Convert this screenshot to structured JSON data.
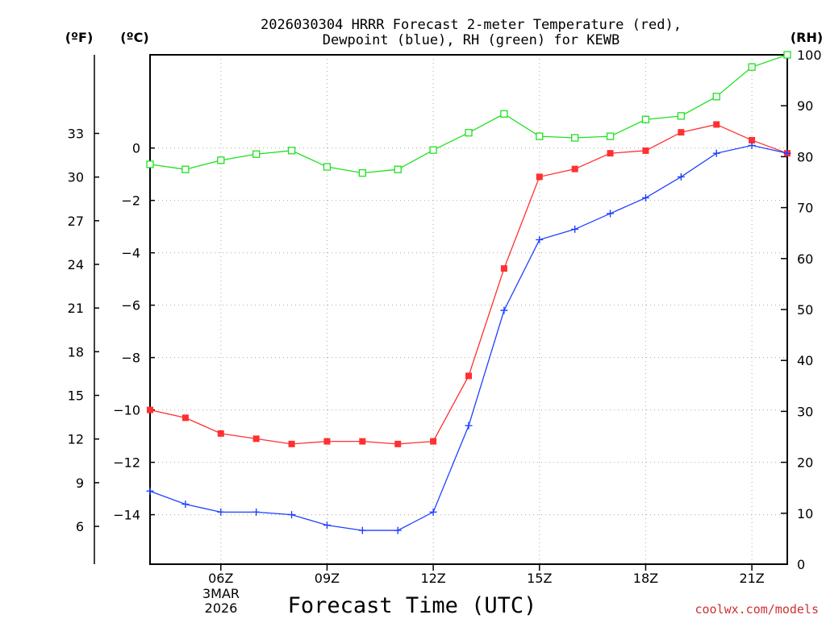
{
  "chart_data": {
    "type": "line",
    "title_line1": "2026030304 HRRR Forecast 2-meter Temperature (red),",
    "title_line2": "Dewpoint (blue), RH (green) for KEWB",
    "xlabel": "Forecast Time (UTC)",
    "credit": "coolwx.com/models",
    "date_label": [
      "3MAR",
      "2026"
    ],
    "x_hours": [
      4,
      5,
      6,
      7,
      8,
      9,
      10,
      11,
      12,
      13,
      14,
      15,
      16,
      17,
      18,
      19,
      20,
      21,
      22
    ],
    "x_range": [
      4,
      22
    ],
    "x_ticks": [
      {
        "hour": 6,
        "label": "06Z"
      },
      {
        "hour": 9,
        "label": "09Z"
      },
      {
        "hour": 12,
        "label": "12Z"
      },
      {
        "hour": 15,
        "label": "15Z"
      },
      {
        "hour": 18,
        "label": "18Z"
      },
      {
        "hour": 21,
        "label": "21Z"
      }
    ],
    "axes": {
      "fahrenheit": {
        "unit_label": "(ºF)",
        "range": [
          3.4,
          38.4
        ],
        "ticks": [
          "6",
          "9",
          "12",
          "15",
          "18",
          "21",
          "24",
          "27",
          "30",
          "33"
        ]
      },
      "celsius": {
        "unit_label": "(ºC)",
        "range": [
          -15.89,
          3.56
        ],
        "ticks": [
          "−14",
          "−12",
          "−10",
          "−8",
          "−6",
          "−4",
          "−2",
          "0"
        ]
      },
      "rh": {
        "unit_label": "(RH)",
        "range": [
          0,
          100
        ],
        "ticks": [
          "0",
          "10",
          "20",
          "30",
          "40",
          "50",
          "60",
          "70",
          "80",
          "90",
          "100"
        ]
      }
    },
    "series": [
      {
        "name": "Temperature",
        "color": "#ff3030",
        "axis": "celsius",
        "marker": "filled-square",
        "values": [
          -10.0,
          -10.3,
          -10.9,
          -11.1,
          -11.3,
          -11.2,
          -11.2,
          -11.3,
          -11.2,
          -8.7,
          -4.6,
          -1.1,
          -0.8,
          -0.2,
          -0.1,
          0.6,
          0.9,
          0.3,
          -0.2
        ]
      },
      {
        "name": "Dewpoint",
        "color": "#2040ff",
        "axis": "celsius",
        "marker": "plus",
        "values": [
          -13.1,
          -13.6,
          -13.9,
          -13.9,
          -14.0,
          -14.4,
          -14.6,
          -14.6,
          -13.9,
          -10.6,
          -6.2,
          -3.5,
          -3.1,
          -2.5,
          -1.9,
          -1.1,
          -0.2,
          0.1,
          -0.2
        ]
      },
      {
        "name": "RH",
        "color": "#20e020",
        "axis": "rh",
        "marker": "open-square",
        "values": [
          78.5,
          77.5,
          79.3,
          80.5,
          81.2,
          78.0,
          76.8,
          77.5,
          81.3,
          84.7,
          88.4,
          84.0,
          83.7,
          84.0,
          87.3,
          88.0,
          91.8,
          97.6,
          100.0
        ]
      }
    ]
  }
}
